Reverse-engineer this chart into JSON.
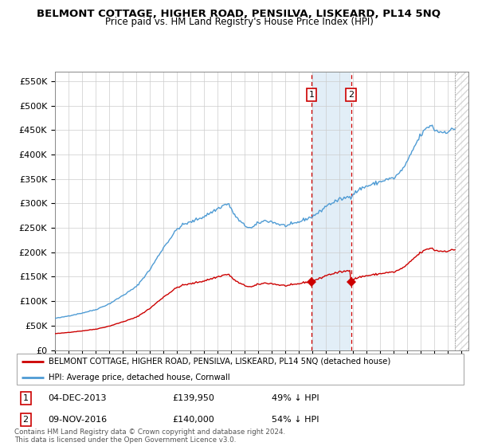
{
  "title": "BELMONT COTTAGE, HIGHER ROAD, PENSILVA, LISKEARD, PL14 5NQ",
  "subtitle": "Price paid vs. HM Land Registry's House Price Index (HPI)",
  "ylim": [
    0,
    570000
  ],
  "yticks": [
    0,
    50000,
    100000,
    150000,
    200000,
    250000,
    300000,
    350000,
    400000,
    450000,
    500000,
    550000
  ],
  "ytick_labels": [
    "£0",
    "£50K",
    "£100K",
    "£150K",
    "£200K",
    "£250K",
    "£300K",
    "£350K",
    "£400K",
    "£450K",
    "£500K",
    "£550K"
  ],
  "hpi_color": "#4e9bd4",
  "price_color": "#cc0000",
  "purchase1_date": 2013.917,
  "purchase1_price": 139950,
  "purchase2_date": 2016.833,
  "purchase2_price": 140000,
  "shade_color": "#d6e8f5",
  "dashed_color": "#cc0000",
  "legend_house_label": "BELMONT COTTAGE, HIGHER ROAD, PENSILVA, LISKEARD, PL14 5NQ (detached house)",
  "legend_hpi_label": "HPI: Average price, detached house, Cornwall",
  "table_row1": [
    "1",
    "04-DEC-2013",
    "£139,950",
    "49% ↓ HPI"
  ],
  "table_row2": [
    "2",
    "09-NOV-2016",
    "£140,000",
    "54% ↓ HPI"
  ],
  "footnote": "Contains HM Land Registry data © Crown copyright and database right 2024.\nThis data is licensed under the Open Government Licence v3.0.",
  "bg_color": "#ffffff",
  "grid_color": "#cccccc",
  "xlim_start": 1995.0,
  "xlim_end": 2025.5,
  "data_end": 2024.5,
  "hatch_color": "#bbbbbb"
}
